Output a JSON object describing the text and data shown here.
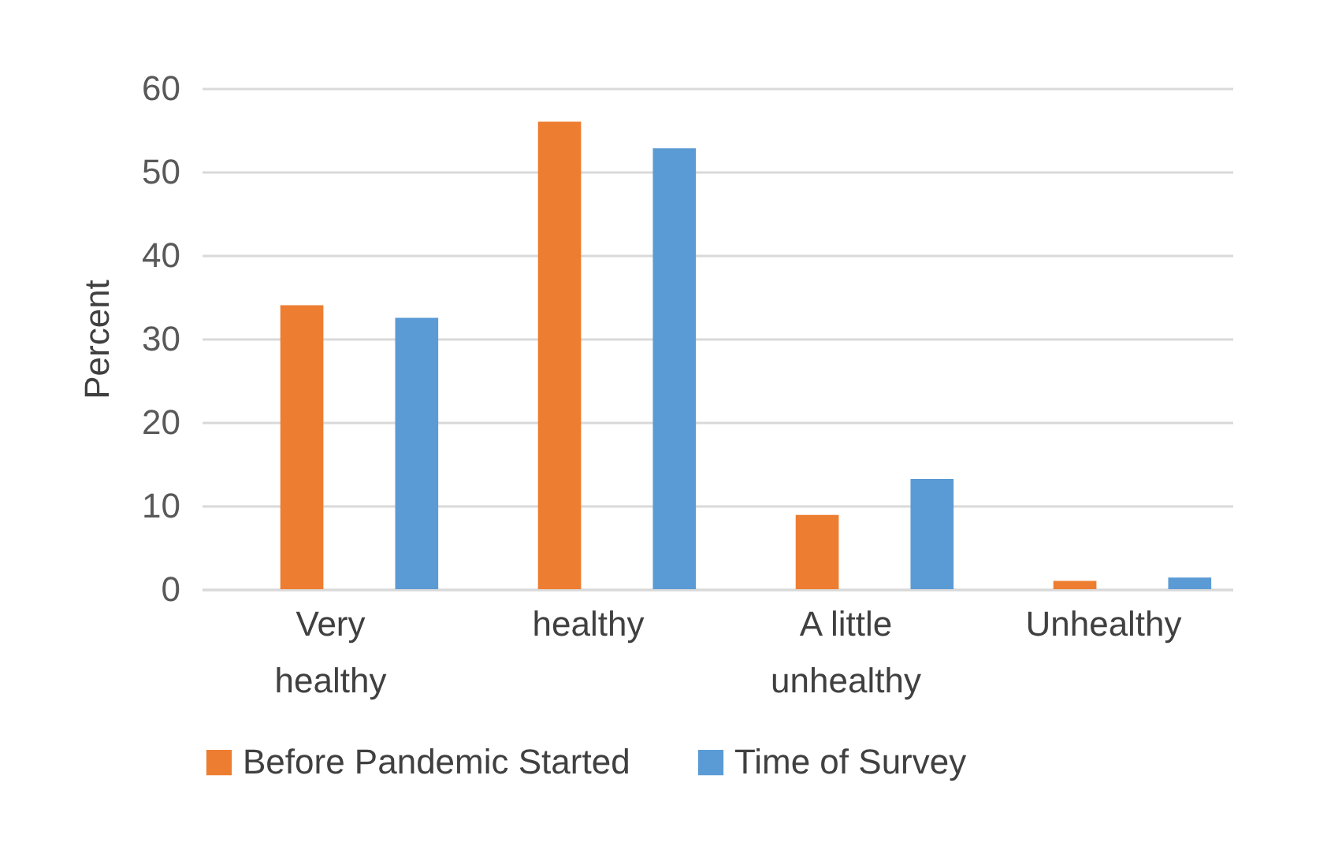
{
  "chart_data": {
    "type": "bar",
    "ylabel": "Percent",
    "categories": [
      "Very healthy",
      "healthy",
      "A little unhealthy",
      "Unhealthy"
    ],
    "series": [
      {
        "name": "Before Pandemic Started",
        "color": "#ed7d31",
        "values": [
          34,
          56,
          8.9,
          1.0
        ]
      },
      {
        "name": "Time of Survey",
        "color": "#5b9bd5",
        "values": [
          32.5,
          52.8,
          13.2,
          1.4
        ]
      }
    ],
    "ylim": [
      0,
      60
    ],
    "yticks": [
      0,
      10,
      20,
      30,
      40,
      50,
      60
    ],
    "grid": "y",
    "legend": "bottom"
  }
}
